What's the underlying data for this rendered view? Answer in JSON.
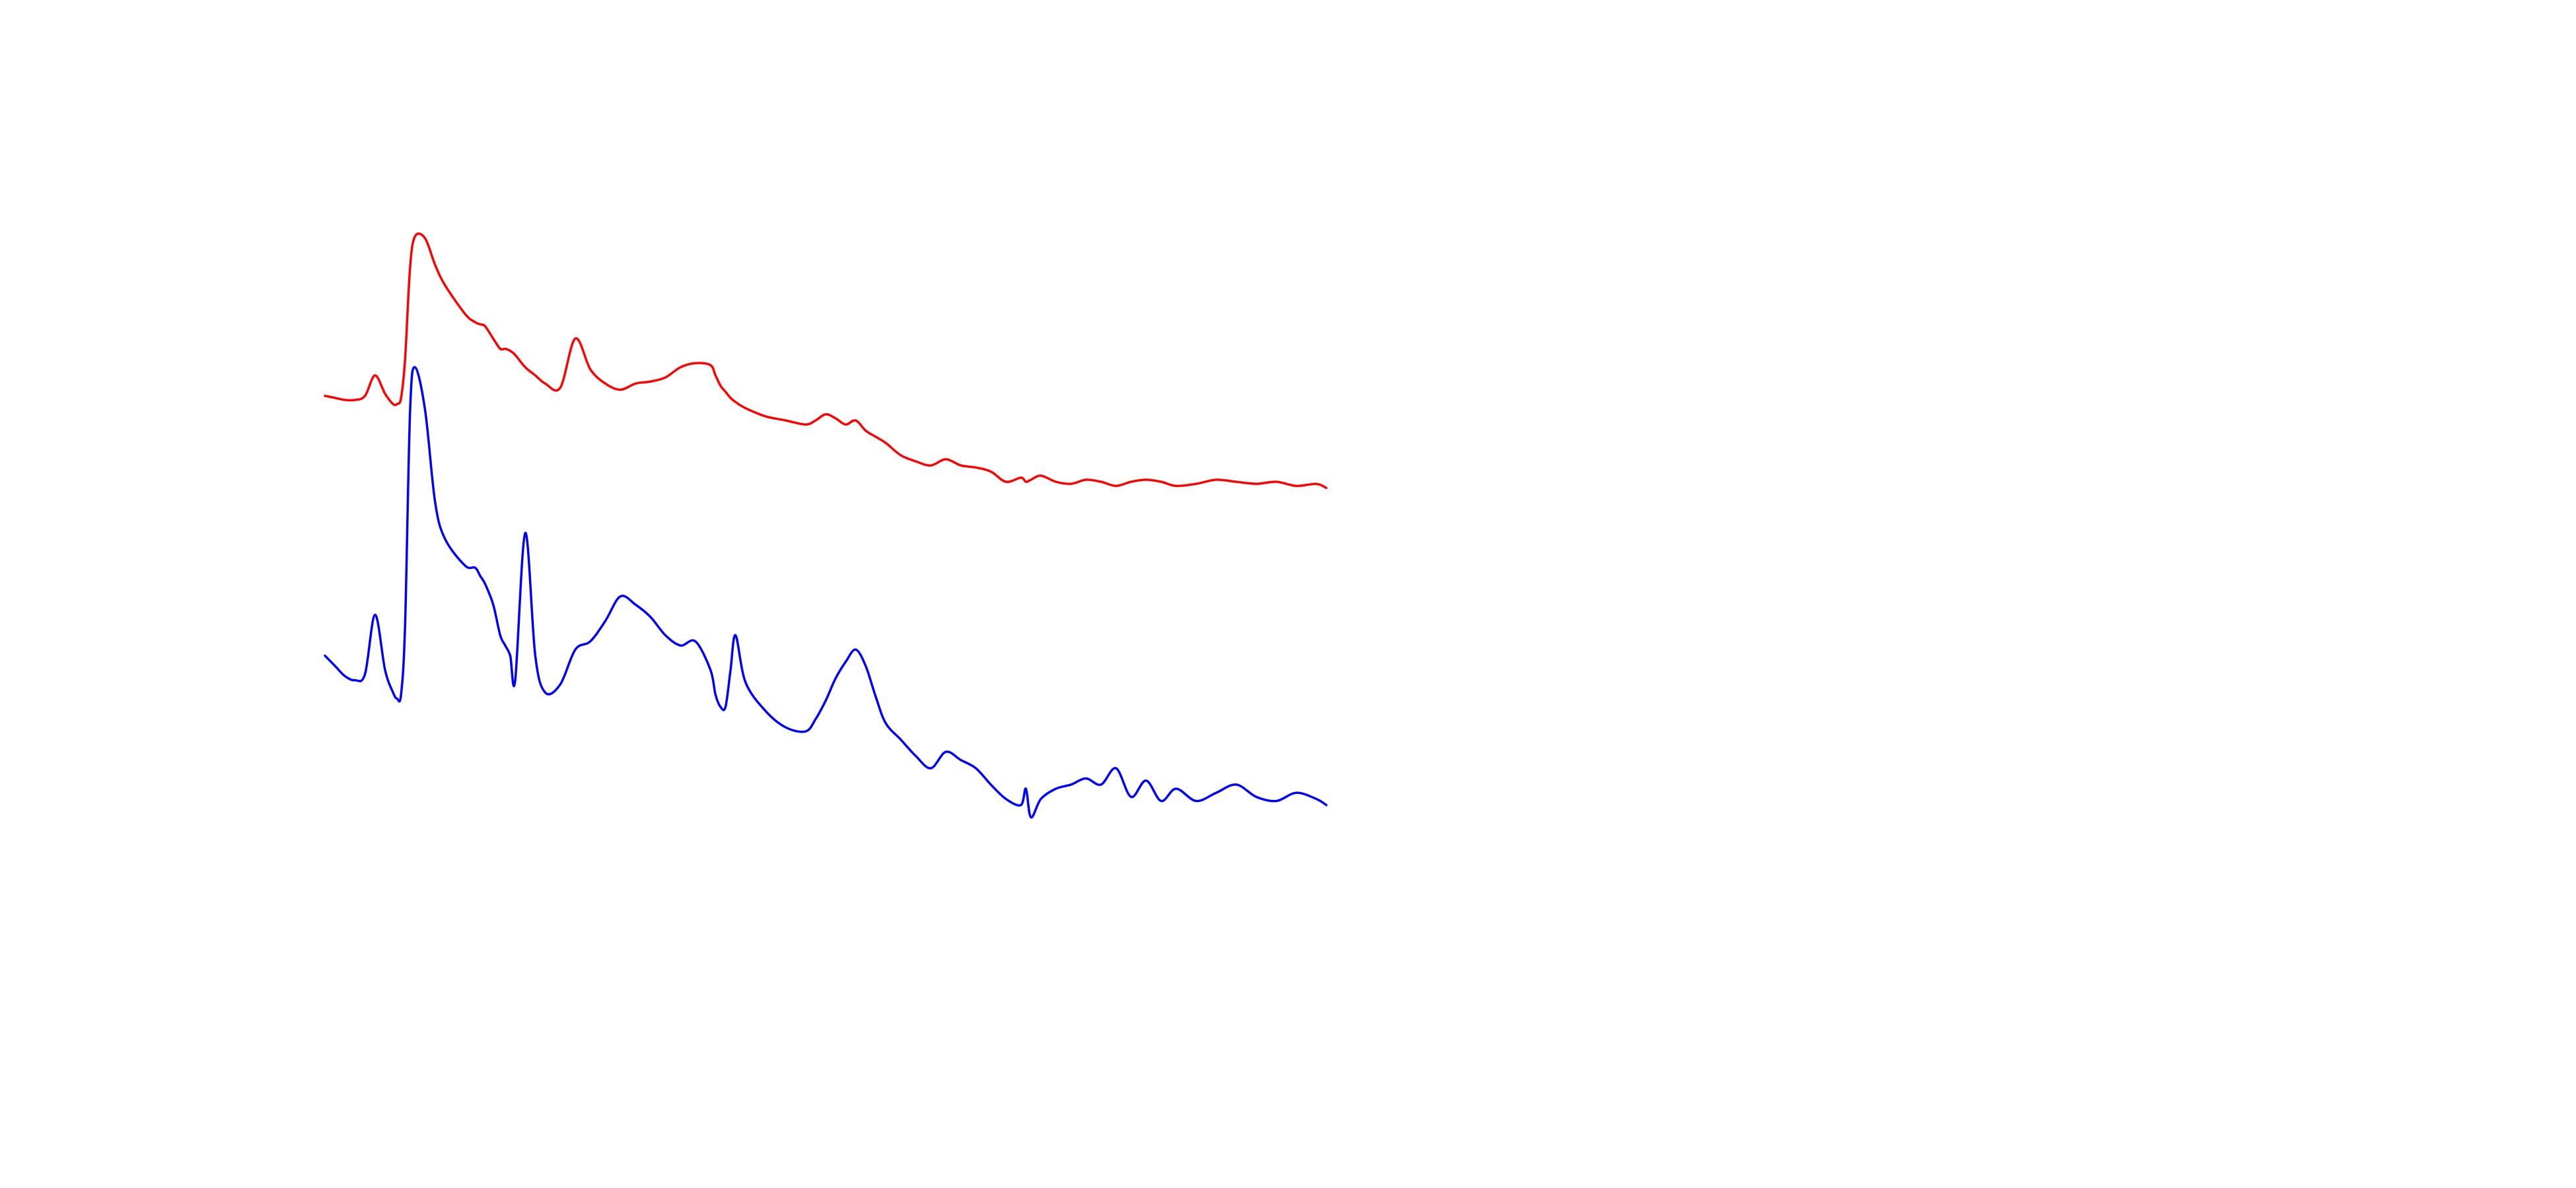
{
  "chart_data": {
    "type": "line",
    "axes_visible": false,
    "grid": false,
    "legend": "none",
    "x": [
      0,
      10,
      20,
      30,
      40,
      50,
      60,
      68,
      72,
      76,
      80,
      85,
      90,
      100,
      110,
      120,
      140,
      150,
      155,
      160,
      168,
      175,
      180,
      185,
      190,
      200,
      210,
      220,
      235,
      250,
      265,
      280,
      295,
      310,
      325,
      340,
      355,
      370,
      385,
      390,
      395,
      400,
      405,
      410,
      420,
      440,
      460,
      480,
      490,
      500,
      510,
      520,
      530,
      540,
      550,
      560,
      575,
      590,
      605,
      620,
      635,
      650,
      665,
      680,
      695,
      700,
      705,
      715,
      730,
      745,
      760,
      775,
      790,
      805,
      820,
      835,
      850,
      870,
      890,
      910,
      930,
      950,
      970,
      990,
      1000
    ],
    "series": [
      {
        "color": "#ff0000",
        "values": [
          -0.08,
          -0.09,
          -0.1,
          -0.1,
          -0.08,
          0.02,
          -0.07,
          -0.12,
          -0.12,
          -0.09,
          0.1,
          0.55,
          0.7,
          0.69,
          0.56,
          0.46,
          0.32,
          0.28,
          0.27,
          0.26,
          0.2,
          0.15,
          0.15,
          0.14,
          0.12,
          0.06,
          0.02,
          -0.02,
          -0.04,
          0.2,
          0.05,
          -0.02,
          -0.05,
          -0.02,
          -0.01,
          0.01,
          0.06,
          0.08,
          0.07,
          0.02,
          -0.03,
          -0.06,
          -0.09,
          -0.11,
          -0.14,
          -0.18,
          -0.2,
          -0.22,
          -0.2,
          -0.17,
          -0.19,
          -0.22,
          -0.2,
          -0.25,
          -0.28,
          -0.31,
          -0.37,
          -0.4,
          -0.42,
          -0.39,
          -0.42,
          -0.43,
          -0.45,
          -0.5,
          -0.48,
          -0.5,
          -0.49,
          -0.47,
          -0.5,
          -0.51,
          -0.49,
          -0.5,
          -0.52,
          -0.5,
          -0.49,
          -0.5,
          -0.52,
          -0.51,
          -0.49,
          -0.5,
          -0.51,
          -0.5,
          -0.52,
          -0.51,
          -0.53
        ]
      },
      {
        "color": "#0000ff",
        "values": [
          -1.35,
          -1.4,
          -1.45,
          -1.47,
          -1.44,
          -1.15,
          -1.42,
          -1.53,
          -1.56,
          -1.54,
          -1.2,
          -0.15,
          0.06,
          -0.15,
          -0.6,
          -0.78,
          -0.91,
          -0.92,
          -0.96,
          -1.0,
          -1.1,
          -1.25,
          -1.3,
          -1.35,
          -1.47,
          -0.75,
          -1.35,
          -1.53,
          -1.49,
          -1.32,
          -1.28,
          -1.18,
          -1.06,
          -1.1,
          -1.16,
          -1.25,
          -1.3,
          -1.28,
          -1.42,
          -1.54,
          -1.6,
          -1.6,
          -1.42,
          -1.25,
          -1.48,
          -1.62,
          -1.7,
          -1.72,
          -1.66,
          -1.57,
          -1.46,
          -1.38,
          -1.32,
          -1.4,
          -1.55,
          -1.68,
          -1.76,
          -1.84,
          -1.9,
          -1.82,
          -1.86,
          -1.9,
          -1.98,
          -2.05,
          -2.08,
          -2.0,
          -2.14,
          -2.05,
          -2.0,
          -1.98,
          -1.95,
          -1.98,
          -1.9,
          -2.04,
          -1.96,
          -2.06,
          -2.0,
          -2.06,
          -2.02,
          -1.98,
          -2.04,
          -2.06,
          -2.02,
          -2.05,
          -2.08
        ]
      }
    ],
    "xlim": [
      0,
      1000
    ],
    "ylim": [
      -3.5,
      1.5
    ]
  }
}
